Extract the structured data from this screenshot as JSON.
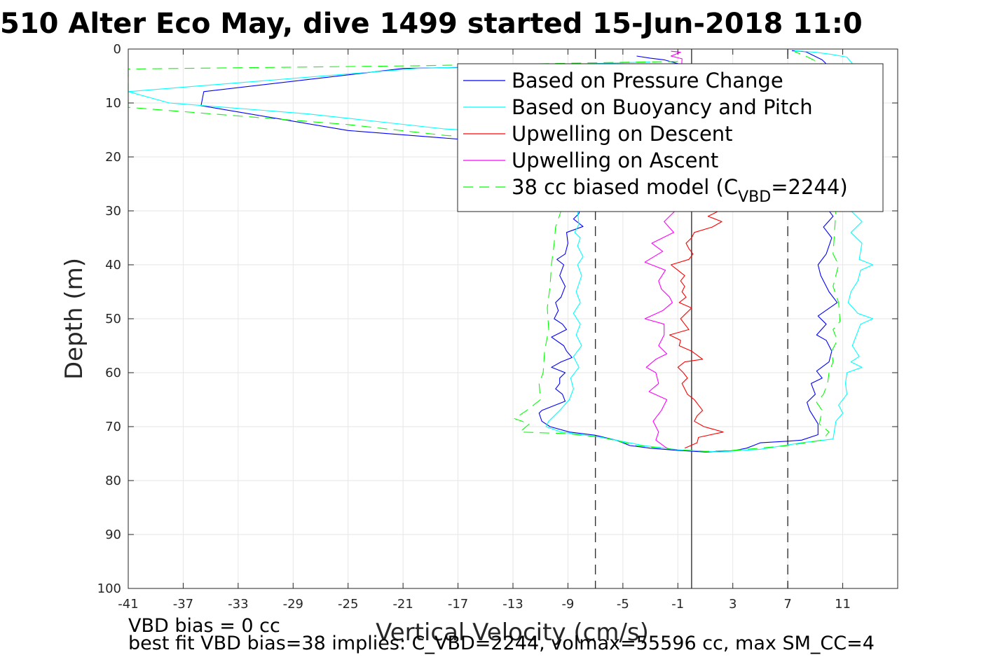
{
  "chart_data": {
    "type": "line",
    "title": "510 Alter Eco May, dive 1499 started 15-Jun-2018 11:0",
    "xlabel": "Vertical Velocity (cm/s)",
    "ylabel": "Depth (m)",
    "xlim": [
      -41,
      15
    ],
    "ylim": [
      0,
      100
    ],
    "y_reversed": true,
    "grid": true,
    "xticks": [
      -41,
      -37,
      -33,
      -29,
      -25,
      -21,
      -17,
      -13,
      -9,
      -5,
      -1,
      3,
      7,
      11
    ],
    "yticks": [
      0,
      10,
      20,
      30,
      40,
      50,
      60,
      70,
      80,
      90,
      100
    ],
    "legend_position": "top-right",
    "legend": [
      {
        "label": "Based on Pressure Change",
        "color": "#0000ff",
        "dash": false
      },
      {
        "label": "Based on Buoyancy and Pitch",
        "color": "#00ffff",
        "dash": false
      },
      {
        "label": "Upwelling on Descent",
        "color": "#ff0000",
        "dash": false
      },
      {
        "label": "Upwelling on Ascent",
        "color": "#ff00ff",
        "dash": false
      },
      {
        "label": "38 cc biased model (C",
        "sub": "VBD",
        "suffix": "=2244)",
        "color": "#00ff00",
        "dash": true
      }
    ],
    "reference_lines": [
      {
        "x": -7,
        "style": "dashed",
        "color": "#333333"
      },
      {
        "x": 0,
        "style": "solid",
        "color": "#333333"
      },
      {
        "x": 7,
        "style": "dashed",
        "color": "#333333"
      }
    ],
    "series": [
      {
        "color": "#0000ff",
        "dash": false,
        "points": [
          [
            -4,
            1.3
          ],
          [
            -3,
            1.7
          ],
          [
            -2,
            2.0
          ],
          [
            -1,
            2.7
          ],
          [
            -21,
            3.6
          ],
          [
            -35.5,
            7.9
          ],
          [
            -35.7,
            10.5
          ],
          [
            -25,
            15.1
          ],
          [
            -21,
            15.9
          ],
          [
            -17,
            16.7
          ],
          [
            -12,
            17.5
          ],
          [
            -9,
            18
          ],
          [
            -7.5,
            23
          ],
          [
            -8,
            28
          ],
          [
            -8.2,
            30.5
          ],
          [
            -8.6,
            31.5
          ],
          [
            -7.9,
            32.9
          ],
          [
            -9.1,
            34
          ],
          [
            -9,
            36
          ],
          [
            -9.2,
            38
          ],
          [
            -9.8,
            39
          ],
          [
            -9.3,
            40
          ],
          [
            -9.6,
            42
          ],
          [
            -9.2,
            44
          ],
          [
            -9.5,
            46
          ],
          [
            -9.9,
            47
          ],
          [
            -9.7,
            48.5
          ],
          [
            -10,
            50
          ],
          [
            -9.4,
            51
          ],
          [
            -9.1,
            52
          ],
          [
            -10.2,
            53.4
          ],
          [
            -9.3,
            55
          ],
          [
            -9.1,
            56
          ],
          [
            -8.7,
            57.2
          ],
          [
            -9.5,
            58
          ],
          [
            -10.2,
            59
          ],
          [
            -9.2,
            60
          ],
          [
            -9.6,
            61
          ],
          [
            -9.6,
            62
          ],
          [
            -9.9,
            63
          ],
          [
            -9.4,
            64
          ],
          [
            -9.2,
            65.3
          ],
          [
            -10.9,
            67
          ],
          [
            -11.1,
            67.5
          ],
          [
            -10.9,
            69
          ],
          [
            -10.3,
            70
          ],
          [
            -8.9,
            71
          ],
          [
            -7,
            71.6
          ],
          [
            -5.5,
            72.5
          ],
          [
            -4.5,
            73.5
          ],
          [
            -3,
            74
          ],
          [
            -1,
            74.4
          ],
          [
            1,
            74.7
          ],
          [
            3,
            74.5
          ],
          [
            4,
            74
          ],
          [
            4.5,
            73.5
          ],
          [
            5,
            73
          ],
          [
            7,
            72.7
          ],
          [
            8,
            72.5
          ],
          [
            9.2,
            71.5
          ],
          [
            9.2,
            69.5
          ],
          [
            8.6,
            67
          ],
          [
            8.4,
            65.5
          ],
          [
            9,
            64
          ],
          [
            8.7,
            62
          ],
          [
            9.5,
            61
          ],
          [
            9.1,
            59.7
          ],
          [
            10,
            58
          ],
          [
            10.2,
            56
          ],
          [
            9.8,
            54
          ],
          [
            9.1,
            53
          ],
          [
            9.8,
            51
          ],
          [
            9.2,
            49.5
          ],
          [
            10.6,
            47
          ],
          [
            10,
            45
          ],
          [
            9.4,
            42
          ],
          [
            9.2,
            40
          ],
          [
            9.8,
            38
          ],
          [
            10.2,
            35
          ],
          [
            9.6,
            33
          ],
          [
            10.3,
            31
          ],
          [
            9.7,
            29
          ],
          [
            10,
            25
          ],
          [
            10.4,
            20
          ],
          [
            10.5,
            15
          ],
          [
            10.5,
            10
          ],
          [
            10,
            6
          ],
          [
            10.3,
            4
          ],
          [
            9.5,
            2
          ],
          [
            8.3,
            0.5
          ],
          [
            7.3,
            0.3
          ]
        ]
      },
      {
        "color": "#00ffff",
        "dash": false,
        "points": [
          [
            -3,
            2.4
          ],
          [
            -20,
            3.6
          ],
          [
            -41,
            7.9
          ],
          [
            -38,
            10
          ],
          [
            -28,
            12
          ],
          [
            -18,
            14.8
          ],
          [
            -13,
            15.5
          ],
          [
            -8.5,
            17
          ],
          [
            -7.5,
            24
          ],
          [
            -8.3,
            30
          ],
          [
            -8.2,
            32.5
          ],
          [
            -8.5,
            34
          ],
          [
            -8.1,
            35
          ],
          [
            -8.3,
            36.5
          ],
          [
            -7.9,
            38.5
          ],
          [
            -8.3,
            40
          ],
          [
            -8,
            42
          ],
          [
            -8.4,
            45
          ],
          [
            -8.1,
            47
          ],
          [
            -8.6,
            49
          ],
          [
            -8.1,
            51
          ],
          [
            -8.4,
            53
          ],
          [
            -8,
            55
          ],
          [
            -8.6,
            57
          ],
          [
            -8.2,
            59
          ],
          [
            -8.8,
            61
          ],
          [
            -8.6,
            63
          ],
          [
            -8.9,
            65
          ],
          [
            -9.6,
            67
          ],
          [
            -10.4,
            69
          ],
          [
            -10.6,
            70
          ],
          [
            -9.5,
            71
          ],
          [
            -6.5,
            72
          ],
          [
            -3.5,
            73.5
          ],
          [
            -1,
            74.3
          ],
          [
            2,
            74.7
          ],
          [
            5,
            74.2
          ],
          [
            6.5,
            73.6
          ],
          [
            8,
            73
          ],
          [
            10.3,
            72.3
          ],
          [
            10.5,
            69
          ],
          [
            11,
            67.5
          ],
          [
            10.7,
            66
          ],
          [
            11.3,
            64
          ],
          [
            11.2,
            62
          ],
          [
            11.3,
            60
          ],
          [
            12.4,
            59
          ],
          [
            11.6,
            58
          ],
          [
            12.2,
            57
          ],
          [
            11.7,
            55
          ],
          [
            12,
            53
          ],
          [
            12.3,
            51
          ],
          [
            13.2,
            50
          ],
          [
            12.1,
            49
          ],
          [
            11.4,
            47
          ],
          [
            11.6,
            45
          ],
          [
            12.1,
            43
          ],
          [
            12.3,
            41
          ],
          [
            13.2,
            40
          ],
          [
            12.2,
            39
          ],
          [
            12.4,
            36
          ],
          [
            11.6,
            34
          ],
          [
            12.4,
            32
          ],
          [
            11.6,
            30
          ],
          [
            11.8,
            25
          ],
          [
            11.7,
            20
          ],
          [
            11.6,
            12
          ],
          [
            11.5,
            8
          ],
          [
            11.3,
            5
          ],
          [
            11.8,
            3
          ],
          [
            11.3,
            1.5
          ],
          [
            10.2,
            1
          ],
          [
            9,
            0.6
          ],
          [
            7.5,
            0.3
          ]
        ]
      },
      {
        "color": "#ff0000",
        "dash": false,
        "points": [
          [
            2,
            30
          ],
          [
            1.2,
            31
          ],
          [
            2.2,
            32
          ],
          [
            1.5,
            33
          ],
          [
            0.2,
            34
          ],
          [
            0,
            35
          ],
          [
            -0.4,
            36
          ],
          [
            -0.2,
            37
          ],
          [
            0.1,
            38
          ],
          [
            -0.2,
            39
          ],
          [
            -1.5,
            40
          ],
          [
            -0.5,
            42
          ],
          [
            -0.8,
            43
          ],
          [
            -0.5,
            44
          ],
          [
            -0.7,
            45
          ],
          [
            -0.4,
            46
          ],
          [
            -0.9,
            47
          ],
          [
            0,
            48
          ],
          [
            -0.4,
            49
          ],
          [
            -0.8,
            50
          ],
          [
            -0.5,
            51
          ],
          [
            -0.2,
            52
          ],
          [
            -1.6,
            53
          ],
          [
            -0.8,
            54
          ],
          [
            -0.9,
            55
          ],
          [
            0,
            56
          ],
          [
            0.8,
            57.5
          ],
          [
            -0.5,
            58
          ],
          [
            -1,
            59
          ],
          [
            -0.6,
            60
          ],
          [
            -0.3,
            61
          ],
          [
            -0.7,
            62
          ],
          [
            -0.5,
            63
          ],
          [
            -0.3,
            64
          ],
          [
            0.2,
            65
          ],
          [
            0.5,
            66
          ],
          [
            0.8,
            67
          ],
          [
            0.4,
            68
          ],
          [
            0.2,
            69
          ],
          [
            0.9,
            70
          ],
          [
            2.3,
            71
          ],
          [
            0.5,
            72
          ],
          [
            0.4,
            73
          ],
          [
            -0.5,
            74
          ]
        ]
      },
      {
        "color": "#ff00ff",
        "dash": false,
        "points": [
          [
            -1.5,
            0.4
          ],
          [
            -0.8,
            0.6
          ],
          [
            -1.5,
            1.3
          ],
          [
            -0.7,
            1.8
          ],
          [
            -1.2,
            30
          ],
          [
            -2,
            32
          ],
          [
            -1.3,
            34
          ],
          [
            -2.9,
            36
          ],
          [
            -2.1,
            37.5
          ],
          [
            -3.4,
            39.5
          ],
          [
            -1.9,
            41
          ],
          [
            -2.4,
            43
          ],
          [
            -2.2,
            44.5
          ],
          [
            -1.6,
            46
          ],
          [
            -1.4,
            47
          ],
          [
            -2.1,
            48.5
          ],
          [
            -3.4,
            50
          ],
          [
            -2,
            51
          ],
          [
            -2,
            53
          ],
          [
            -2.4,
            55
          ],
          [
            -1.8,
            56.5
          ],
          [
            -2.6,
            57.5
          ],
          [
            -3.3,
            59
          ],
          [
            -2.6,
            60
          ],
          [
            -2.4,
            62
          ],
          [
            -3.1,
            63.5
          ],
          [
            -1.8,
            65
          ],
          [
            -2.2,
            67
          ],
          [
            -2.8,
            69
          ],
          [
            -2.4,
            71
          ],
          [
            -2.6,
            72.5
          ],
          [
            -1.8,
            74
          ],
          [
            -1.5,
            74.2
          ]
        ]
      },
      {
        "color": "#00ff00",
        "dash": true,
        "points": [
          [
            -1,
            2.3
          ],
          [
            -20,
            3.1
          ],
          [
            -41,
            3.7
          ],
          [
            -41,
            10.8
          ],
          [
            -35,
            12
          ],
          [
            -25,
            14
          ],
          [
            -18,
            16
          ],
          [
            -12,
            17
          ],
          [
            -9,
            18
          ],
          [
            -8.5,
            20
          ],
          [
            -9.5,
            30
          ],
          [
            -9.9,
            33
          ],
          [
            -10,
            36
          ],
          [
            -10.2,
            40
          ],
          [
            -10.3,
            44
          ],
          [
            -10.5,
            48
          ],
          [
            -10.4,
            52
          ],
          [
            -10.7,
            56
          ],
          [
            -10.8,
            60
          ],
          [
            -11.1,
            62
          ],
          [
            -11,
            65
          ],
          [
            -12,
            67
          ],
          [
            -12.9,
            68.5
          ],
          [
            -11.8,
            69.5
          ],
          [
            -12.5,
            71
          ],
          [
            -9,
            71.3
          ],
          [
            -6.5,
            72
          ],
          [
            -4,
            73.5
          ],
          [
            -1,
            74.3
          ],
          [
            1,
            74.6
          ],
          [
            3,
            74.4
          ],
          [
            5,
            74
          ],
          [
            7,
            73.5
          ],
          [
            9.5,
            72.5
          ],
          [
            10,
            71
          ],
          [
            9.3,
            69.5
          ],
          [
            9.5,
            67
          ],
          [
            9.1,
            65.5
          ],
          [
            9.6,
            64
          ],
          [
            9.9,
            62
          ],
          [
            10,
            60
          ],
          [
            10.3,
            58
          ],
          [
            10.2,
            56
          ],
          [
            10.6,
            54
          ],
          [
            10.3,
            52
          ],
          [
            10.8,
            50.5
          ],
          [
            10.7,
            47
          ],
          [
            10.3,
            44
          ],
          [
            10.7,
            40
          ],
          [
            10.3,
            38
          ],
          [
            10.4,
            34
          ],
          [
            10.5,
            30
          ],
          [
            10.4,
            25
          ],
          [
            10.3,
            20
          ],
          [
            10.2,
            15
          ],
          [
            10.2,
            10
          ],
          [
            10.1,
            6
          ],
          [
            10,
            4
          ],
          [
            9.5,
            2.8
          ],
          [
            8.3,
            1.3
          ],
          [
            7.5,
            0.5
          ]
        ]
      }
    ]
  },
  "notes": {
    "line1": "VBD bias = 0 cc",
    "line2": "best fit VBD bias=38 implies: C_VBD=2244, volmax=55596 cc, max SM_CC=4"
  }
}
